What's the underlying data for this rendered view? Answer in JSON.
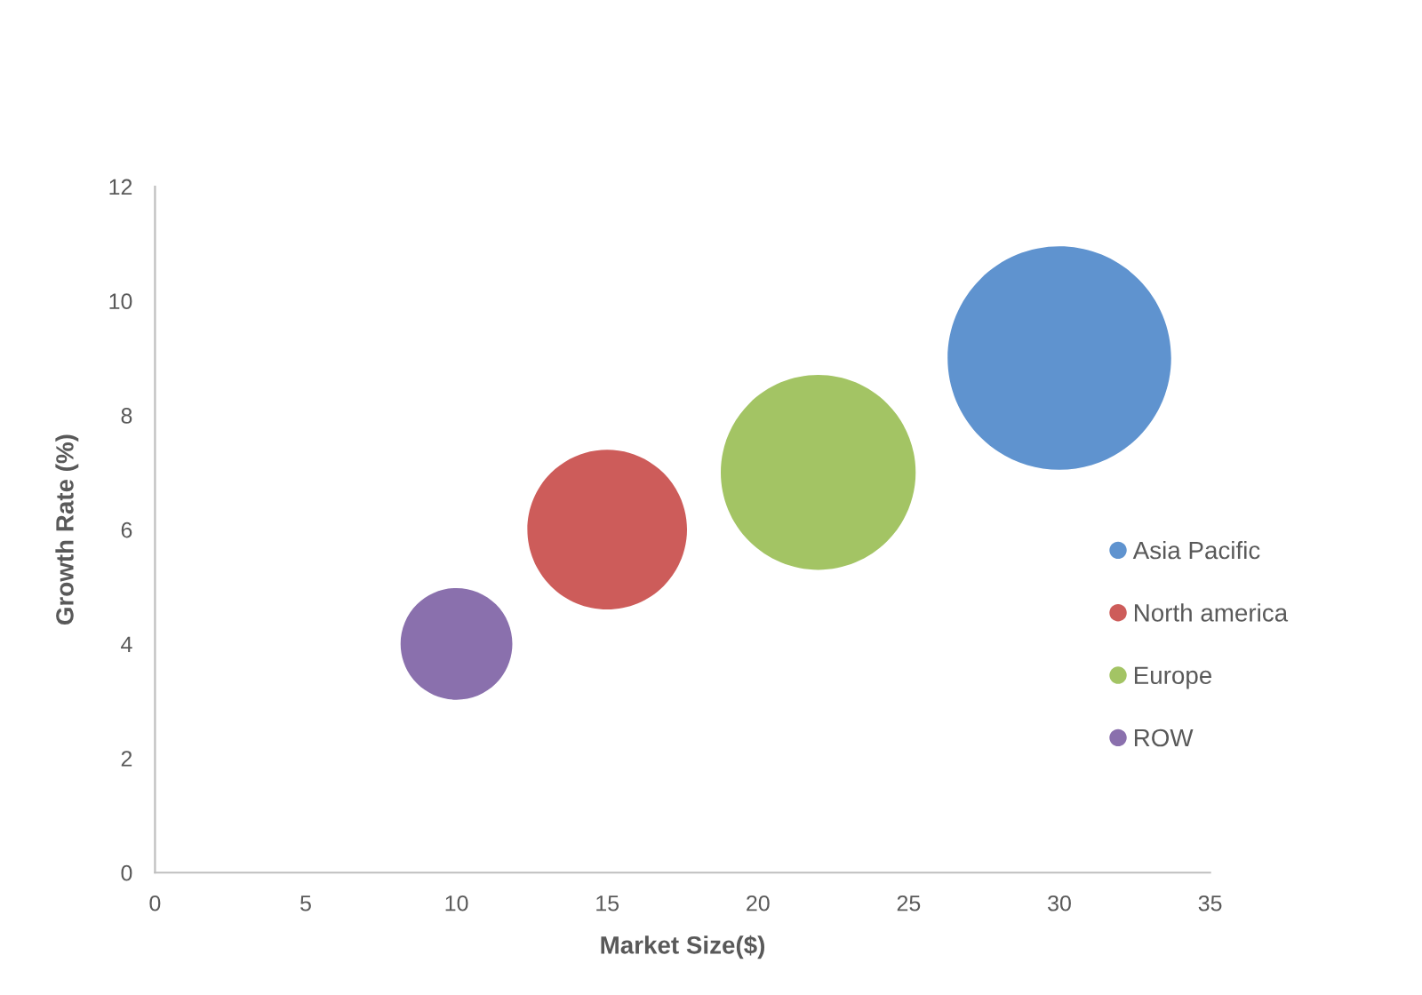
{
  "chart_data": {
    "type": "bubble",
    "xlabel": "Market Size($)",
    "ylabel": "Growth Rate (%)",
    "series": [
      {
        "name": "Asia Pacific",
        "color": "#5f93cf",
        "x": [
          30
        ],
        "values": [
          9
        ],
        "sizes": [
          1
        ]
      },
      {
        "name": "North america",
        "color": "#cd5c5a",
        "x": [
          15
        ],
        "values": [
          6
        ],
        "sizes": [
          0.51
        ]
      },
      {
        "name": "Europe",
        "color": "#a3c464",
        "x": [
          22
        ],
        "values": [
          7
        ],
        "sizes": [
          0.76
        ]
      },
      {
        "name": "ROW",
        "color": "#8a70ad",
        "x": [
          10
        ],
        "values": [
          4
        ],
        "sizes": [
          0.25
        ]
      }
    ],
    "xlim": [
      0,
      35
    ],
    "xticks": [
      0,
      5,
      10,
      15,
      20,
      25,
      30,
      35
    ],
    "ylim": [
      0,
      12
    ],
    "yticks": [
      0,
      2,
      4,
      6,
      8,
      10,
      12
    ],
    "grid": false,
    "legend": "right"
  }
}
